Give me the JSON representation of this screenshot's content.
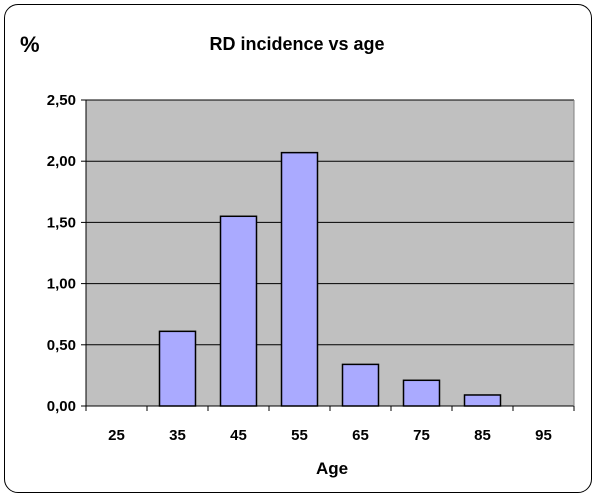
{
  "chart_data": {
    "type": "bar",
    "title": "RD incidence vs age",
    "ylabel": "%",
    "xlabel": "Age",
    "categories": [
      "25",
      "35",
      "45",
      "55",
      "65",
      "75",
      "85",
      "95"
    ],
    "values": [
      0,
      0.61,
      1.55,
      2.07,
      0.34,
      0.21,
      0.09,
      0
    ],
    "ylim": [
      0,
      2.5
    ],
    "yticks": [
      "0,00",
      "0,50",
      "1,00",
      "1,50",
      "2,00",
      "2,50"
    ],
    "grid": true,
    "legend": "none",
    "colors": {
      "bar_fill": "#aaaaff",
      "bar_stroke": "#000000",
      "plot_background": "#c0c0c0",
      "gridline": "#000000"
    }
  }
}
